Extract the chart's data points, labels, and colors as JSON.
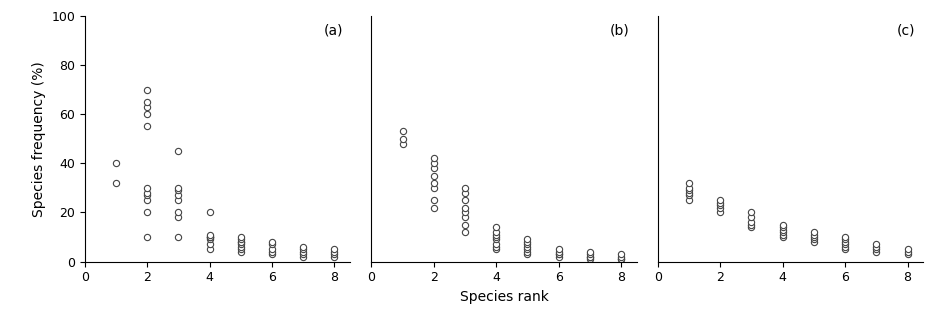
{
  "panels": [
    {
      "label": "(a)",
      "data": {
        "1": [
          32,
          40
        ],
        "2": [
          10,
          20,
          25,
          27,
          28,
          30,
          55,
          60,
          63,
          65,
          70
        ],
        "3": [
          10,
          18,
          20,
          25,
          27,
          29,
          30,
          45
        ],
        "4": [
          5,
          7,
          9,
          10,
          10,
          10,
          11,
          20
        ],
        "5": [
          4,
          5,
          6,
          7,
          8,
          8,
          9,
          10
        ],
        "6": [
          3,
          4,
          5,
          7,
          8
        ],
        "7": [
          2,
          3,
          4,
          5,
          6
        ],
        "8": [
          2,
          3,
          4,
          5
        ]
      }
    },
    {
      "label": "(b)",
      "data": {
        "1": [
          48,
          50,
          53
        ],
        "2": [
          22,
          25,
          30,
          32,
          35,
          38,
          40,
          42
        ],
        "3": [
          12,
          15,
          18,
          20,
          22,
          25,
          28,
          30
        ],
        "4": [
          5,
          6,
          7,
          9,
          10,
          11,
          12,
          14
        ],
        "5": [
          3,
          4,
          5,
          6,
          7,
          8,
          9
        ],
        "6": [
          2,
          3,
          3,
          4,
          5
        ],
        "7": [
          1,
          2,
          2,
          3,
          4
        ],
        "8": [
          1,
          1,
          2,
          3
        ]
      }
    },
    {
      "label": "(c)",
      "data": {
        "1": [
          25,
          27,
          28,
          29,
          30,
          32
        ],
        "2": [
          20,
          22,
          23,
          24,
          25
        ],
        "3": [
          14,
          15,
          16,
          18,
          20
        ],
        "4": [
          10,
          11,
          12,
          13,
          14,
          15
        ],
        "5": [
          8,
          9,
          10,
          11,
          12
        ],
        "6": [
          5,
          6,
          7,
          8,
          9,
          10
        ],
        "7": [
          4,
          5,
          6,
          7
        ],
        "8": [
          3,
          4,
          5
        ]
      }
    }
  ],
  "ylabel": "Species frequency (%)",
  "xlabel": "Species rank",
  "ylim": [
    0,
    100
  ],
  "xlim": [
    0,
    8.5
  ],
  "xticks": [
    0,
    2,
    4,
    6,
    8
  ],
  "yticks": [
    0,
    20,
    40,
    60,
    80,
    100
  ],
  "marker_color": "white",
  "marker_edge_color": "#444444",
  "marker_size": 4.5,
  "marker_edge_width": 0.8,
  "marker_style": "o",
  "background_color": "#ffffff",
  "label_fontsize": 10,
  "tick_fontsize": 9,
  "figsize": [
    9.42,
    3.19
  ],
  "dpi": 100
}
